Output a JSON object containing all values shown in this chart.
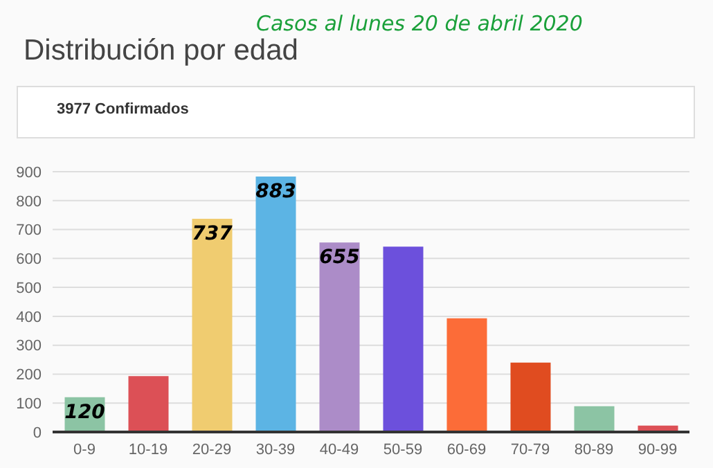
{
  "chart_data": {
    "type": "bar",
    "title": "Distribución por edad",
    "subtitle": "Casos al lunes 20 de abril 2020",
    "annotations": [
      "3977 Confirmados"
    ],
    "categories": [
      "0-9",
      "10-19",
      "20-29",
      "30-39",
      "40-49",
      "50-59",
      "60-69",
      "70-79",
      "80-89",
      "90-99"
    ],
    "values": [
      120,
      193,
      737,
      883,
      655,
      641,
      393,
      240,
      89,
      22
    ],
    "value_labels": [
      "120",
      null,
      "737",
      "883",
      "655",
      null,
      null,
      null,
      null,
      null
    ],
    "colors": [
      "#8cc4a4",
      "#dc5056",
      "#f0cc70",
      "#5cb4e4",
      "#ac8cc8",
      "#6c50dc",
      "#fc6c38",
      "#e04c20",
      "#8cc4a4",
      "#dc5056"
    ],
    "ylim": [
      0,
      900
    ],
    "yticks": [
      0,
      100,
      200,
      300,
      400,
      500,
      600,
      700,
      800,
      900
    ],
    "grid": "y"
  }
}
